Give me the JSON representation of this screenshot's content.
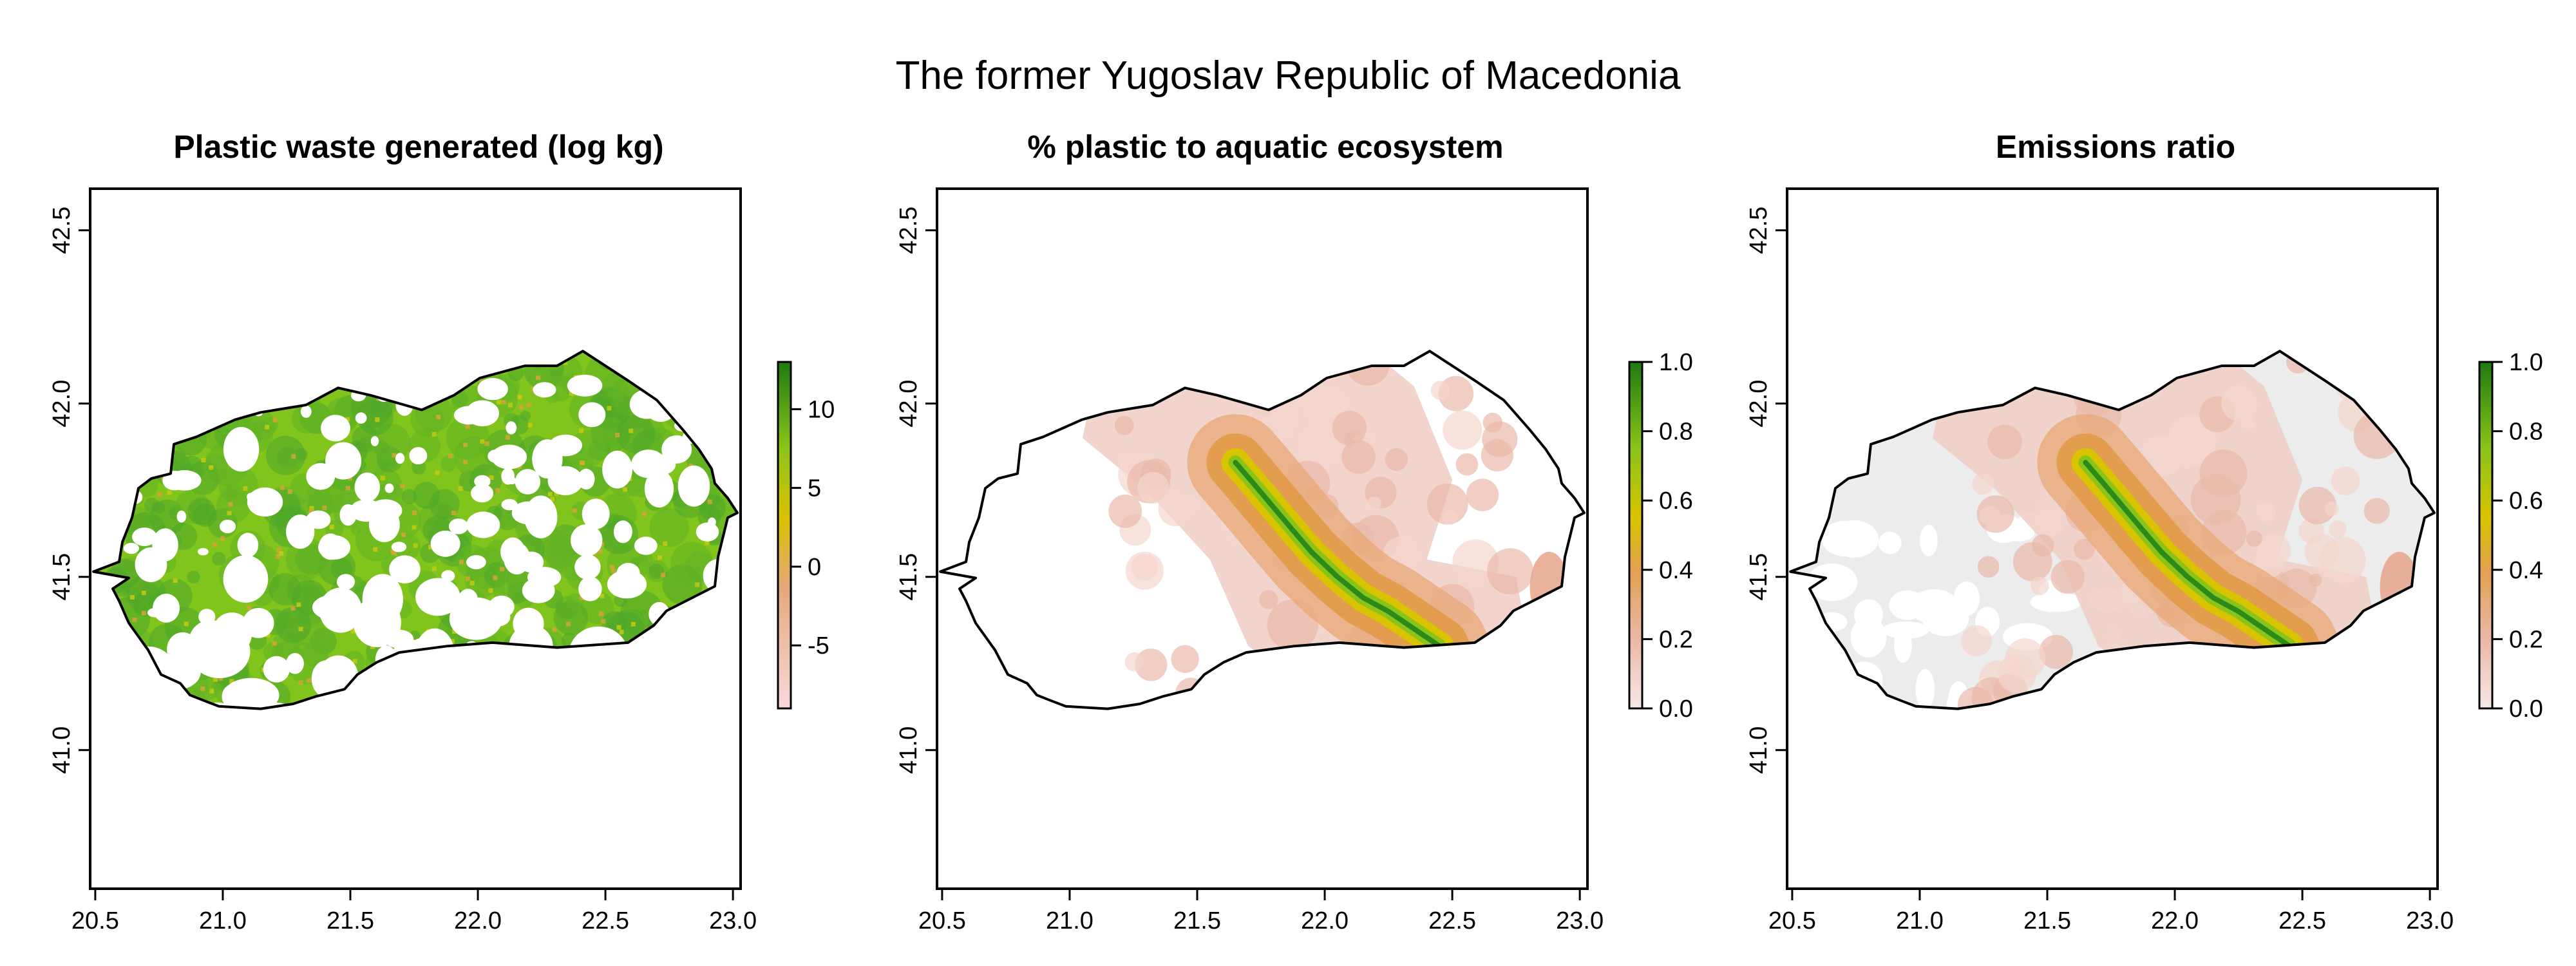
{
  "figure": {
    "title": "The former Yugoslav Republic of Macedonia"
  },
  "axes": {
    "x_ticks": [
      "20.5",
      "21.0",
      "21.5",
      "22.0",
      "22.5",
      "23.0"
    ],
    "y_ticks": [
      "41.0",
      "41.5",
      "42.0",
      "42.5"
    ],
    "xlim": [
      20.48,
      23.03
    ],
    "ylim": [
      40.6,
      42.62
    ]
  },
  "panels": [
    {
      "title": "Plastic waste generated (log kg)",
      "legend_labels": [
        "10",
        "5",
        "0",
        "-5"
      ],
      "legend_range": [
        -9,
        13
      ],
      "colors": {
        "low": "#f6dada",
        "mid": "#d9b500",
        "high": "#2a8a1a",
        "fill": "#7cc11a"
      }
    },
    {
      "title": "% plastic to aquatic ecosystem",
      "legend_labels": [
        "1.0",
        "0.8",
        "0.6",
        "0.4",
        "0.2",
        "0.0"
      ],
      "legend_range": [
        0,
        1
      ],
      "colors": {
        "low": "#f0cfc6",
        "mid": "#e7a060",
        "high": "#2a8a1a"
      }
    },
    {
      "title": "Emissions ratio",
      "legend_labels": [
        "1.0",
        "0.8",
        "0.6",
        "0.4",
        "0.2",
        "0.0"
      ],
      "legend_range": [
        0,
        1
      ],
      "colors": {
        "low": "#f0cfc6",
        "mid": "#e7a060",
        "high": "#2a8a1a",
        "base": "#ececec"
      }
    }
  ]
}
